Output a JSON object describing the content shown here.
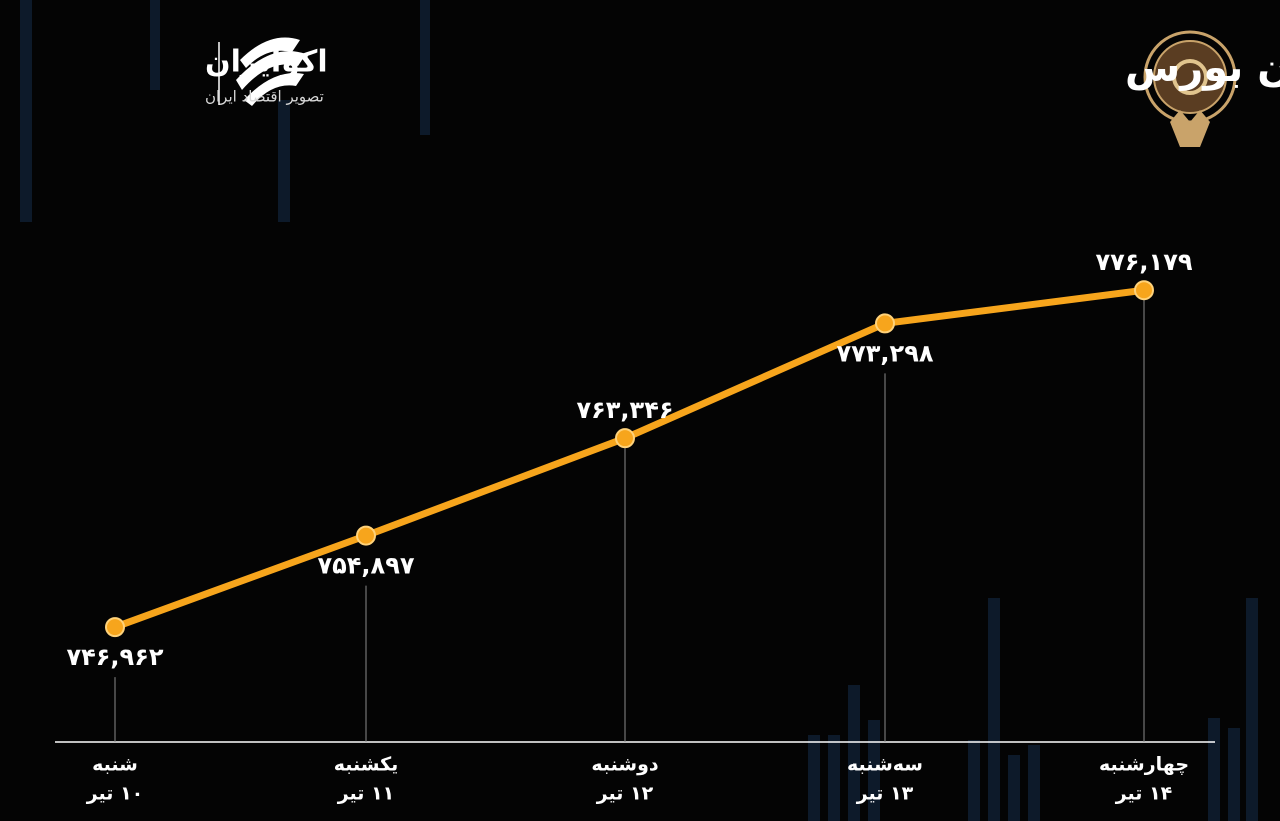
{
  "brand": {
    "name": "اکوایران",
    "tagline": "تصویر اقتصاد ایران"
  },
  "chart_data": {
    "type": "line",
    "title": "روند هفته شاخص هم وزن بورس",
    "categories": [
      "شنبه",
      "یکشنبه",
      "دوشنبه",
      "سه‌شنبه",
      "چهارشنبه"
    ],
    "dates": [
      "۱۰ تیر",
      "۱۱ تیر",
      "۱۲ تیر",
      "۱۳ تیر",
      "۱۴ تیر"
    ],
    "values": [
      746962,
      754897,
      763346,
      773298,
      776179
    ],
    "value_labels": [
      "۷۴۶,۹۶۲",
      "۷۵۴,۸۹۷",
      "۷۶۳,۳۴۶",
      "۷۷۳,۲۹۸",
      "۷۷۶,۱۷۹"
    ],
    "color": "#f7a51c",
    "ylim": [
      737000,
      784000
    ]
  }
}
